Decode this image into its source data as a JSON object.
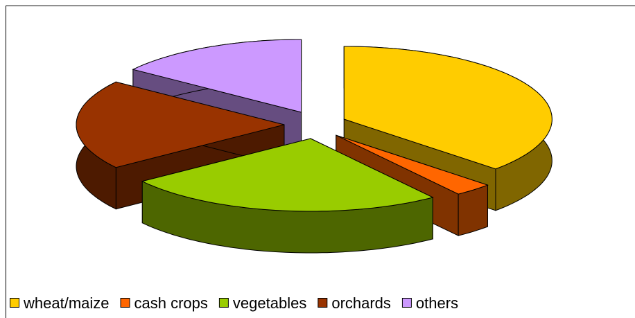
{
  "chart_data": {
    "type": "pie3d",
    "categories": [
      "wheat/maize",
      "cash crops",
      "vegetables",
      "orchards",
      "others"
    ],
    "values": [
      37,
      3,
      25,
      20,
      15
    ],
    "colors": [
      "#ffcc00",
      "#ff6600",
      "#99cc00",
      "#993300",
      "#cc99ff"
    ],
    "legend": "bottom"
  }
}
